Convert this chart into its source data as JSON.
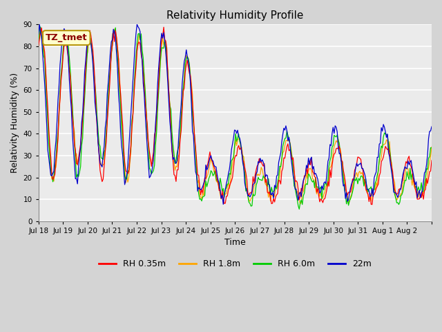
{
  "title": "Relativity Humidity Profile",
  "xlabel": "Time",
  "ylabel": "Relativity Humidity (%)",
  "ylim": [
    0,
    90
  ],
  "yticks": [
    0,
    10,
    20,
    30,
    40,
    50,
    60,
    70,
    80,
    90
  ],
  "annotation": "TZ_tmet",
  "annotation_box_facecolor": "#ffffcc",
  "annotation_text_color": "#8b0000",
  "annotation_edge_color": "#b8960c",
  "fig_facecolor": "#d4d4d4",
  "ax_facecolor": "#ebebeb",
  "grid_color": "#ffffff",
  "colors": {
    "RH 0.35m": "#ff0000",
    "RH 1.8m": "#ffa500",
    "RH 6.0m": "#00cc00",
    "22m": "#0000cc"
  },
  "x_tick_labels": [
    "Jul 18",
    "Jul 19",
    "Jul 20",
    "Jul 21",
    "Jul 22",
    "Jul 23",
    "Jul 24",
    "Jul 25",
    "Jul 26",
    "Jul 27",
    "Jul 28",
    "Jul 29",
    "Jul 30",
    "Jul 31",
    "Aug 1",
    "Aug 2"
  ],
  "n_days": 16,
  "pts_per_day": 24,
  "linewidth": 0.9
}
